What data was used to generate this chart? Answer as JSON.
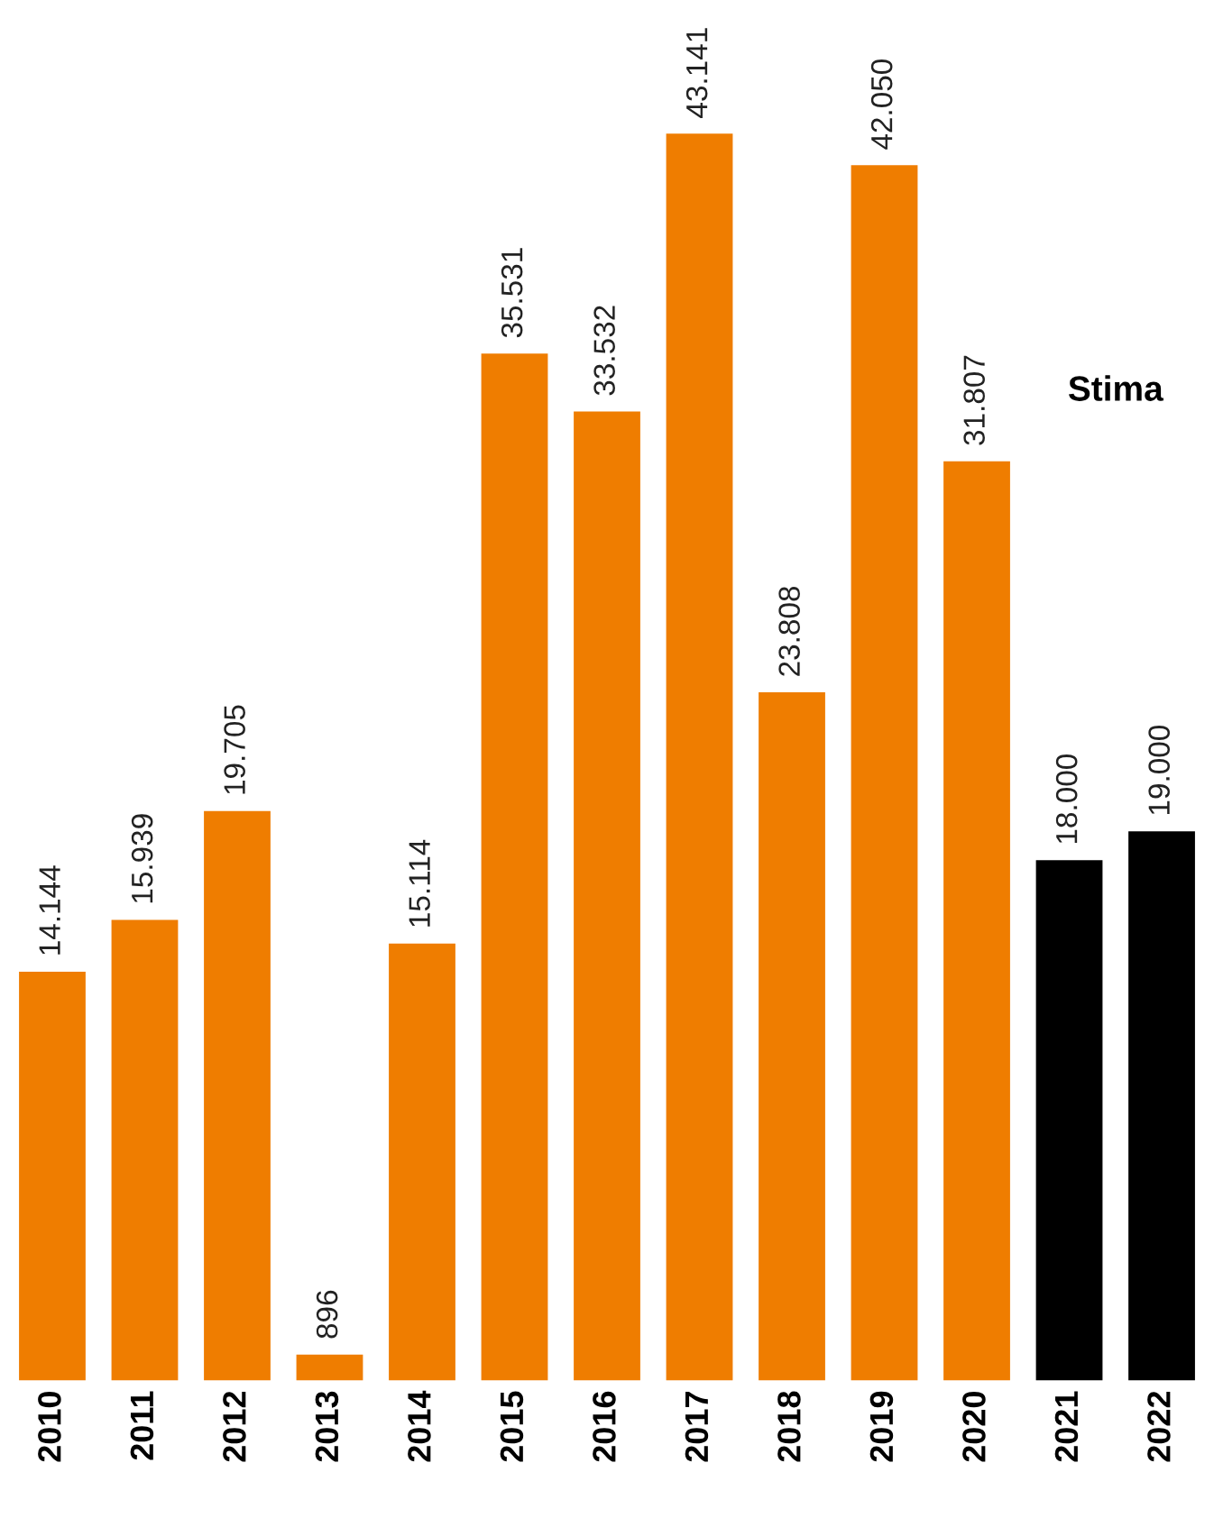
{
  "chart_data": {
    "type": "bar",
    "categories": [
      "2010",
      "2011",
      "2012",
      "2013",
      "2014",
      "2015",
      "2016",
      "2017",
      "2018",
      "2019",
      "2020",
      "2021",
      "2022"
    ],
    "values": [
      14144,
      15939,
      19705,
      896,
      15114,
      35531,
      33532,
      43141,
      23808,
      42050,
      31807,
      18000,
      19000
    ],
    "value_labels": [
      "14.144",
      "15.939",
      "19.705",
      "896",
      "15.114",
      "35.531",
      "33.532",
      "43.141",
      "23.808",
      "42.050",
      "31.807",
      "18.000",
      "19.000"
    ],
    "colors": [
      "#ef7d00",
      "#ef7d00",
      "#ef7d00",
      "#ef7d00",
      "#ef7d00",
      "#ef7d00",
      "#ef7d00",
      "#ef7d00",
      "#ef7d00",
      "#ef7d00",
      "#ef7d00",
      "#000000",
      "#000000"
    ],
    "grid": false,
    "annotations": [
      "Stima"
    ]
  }
}
